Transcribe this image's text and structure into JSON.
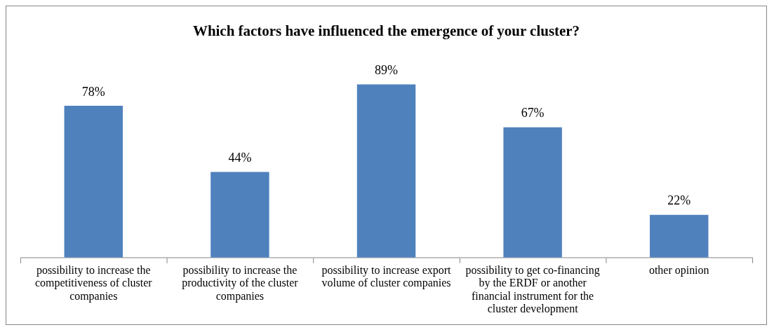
{
  "chart_data": {
    "type": "bar",
    "title": "Which factors have influenced the emergence of your cluster?",
    "categories": [
      "possibility to increase the competitiveness of cluster companies",
      "possibility to increase the productivity of the cluster companies",
      "possibility to increase export volume of cluster companies",
      "possibility to get co-financing by the ERDF or another financial instrument for the cluster development",
      "other opinion"
    ],
    "values": [
      78,
      44,
      89,
      67,
      22
    ],
    "value_labels": [
      "78%",
      "44%",
      "89%",
      "67%",
      "22%"
    ],
    "color": "#4f81bd",
    "tick_labels": "x",
    "grid": false,
    "legend": false
  }
}
